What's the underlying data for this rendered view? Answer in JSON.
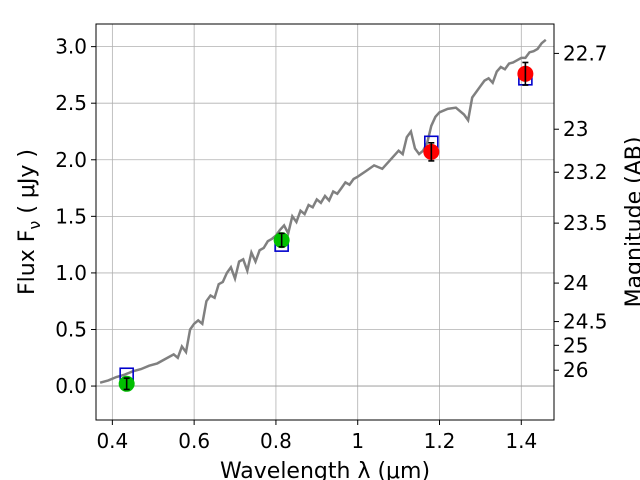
{
  "chart_data": {
    "type": "scatter",
    "xlabel": "Wavelength  λ (μm)",
    "ylabel_left": "Flux  F",
    "ylabel_left_sub": "ν",
    "ylabel_left_units": " ( μJy )",
    "ylabel_right": "Magnitude (AB)",
    "xlim": [
      0.36,
      1.48
    ],
    "ylim": [
      -0.3,
      3.2
    ],
    "x_ticks": [
      {
        "value": 0.4,
        "label": "0.4"
      },
      {
        "value": 0.6,
        "label": "0.6"
      },
      {
        "value": 0.8,
        "label": "0.8"
      },
      {
        "value": 1.0,
        "label": "1"
      },
      {
        "value": 1.2,
        "label": "1.2"
      },
      {
        "value": 1.4,
        "label": "1.4"
      }
    ],
    "y_ticks": [
      {
        "value": 0.0,
        "label": "0.0"
      },
      {
        "value": 0.5,
        "label": "0.5"
      },
      {
        "value": 1.0,
        "label": "1.0"
      },
      {
        "value": 1.5,
        "label": "1.5"
      },
      {
        "value": 2.0,
        "label": "2.0"
      },
      {
        "value": 2.5,
        "label": "2.5"
      },
      {
        "value": 3.0,
        "label": "3.0"
      }
    ],
    "right_ticks": [
      {
        "flux": 2.94,
        "label": "22.7"
      },
      {
        "flux": 2.27,
        "label": "23"
      },
      {
        "flux": 1.89,
        "label": "23.2"
      },
      {
        "flux": 1.44,
        "label": "23.5"
      },
      {
        "flux": 0.91,
        "label": "24"
      },
      {
        "flux": 0.57,
        "label": "24.5"
      },
      {
        "flux": 0.36,
        "label": "25"
      },
      {
        "flux": 0.14,
        "label": "26"
      }
    ],
    "grid": true,
    "model_spectrum": {
      "color": "#808080",
      "x": [
        0.37,
        0.39,
        0.41,
        0.43,
        0.45,
        0.47,
        0.49,
        0.51,
        0.53,
        0.55,
        0.56,
        0.57,
        0.58,
        0.59,
        0.6,
        0.61,
        0.62,
        0.63,
        0.64,
        0.65,
        0.66,
        0.67,
        0.68,
        0.69,
        0.7,
        0.71,
        0.72,
        0.73,
        0.74,
        0.75,
        0.76,
        0.77,
        0.78,
        0.79,
        0.8,
        0.81,
        0.82,
        0.83,
        0.84,
        0.85,
        0.86,
        0.87,
        0.88,
        0.89,
        0.9,
        0.91,
        0.92,
        0.93,
        0.94,
        0.95,
        0.96,
        0.97,
        0.98,
        0.99,
        1.0,
        1.02,
        1.04,
        1.06,
        1.08,
        1.1,
        1.11,
        1.12,
        1.13,
        1.14,
        1.15,
        1.16,
        1.17,
        1.18,
        1.19,
        1.2,
        1.22,
        1.24,
        1.26,
        1.27,
        1.28,
        1.29,
        1.3,
        1.31,
        1.32,
        1.33,
        1.34,
        1.35,
        1.36,
        1.37,
        1.38,
        1.39,
        1.4,
        1.41,
        1.42,
        1.43,
        1.44,
        1.45,
        1.46
      ],
      "y": [
        0.03,
        0.05,
        0.08,
        0.1,
        0.13,
        0.15,
        0.18,
        0.2,
        0.24,
        0.28,
        0.25,
        0.35,
        0.3,
        0.5,
        0.55,
        0.58,
        0.55,
        0.75,
        0.8,
        0.78,
        0.9,
        0.92,
        1.0,
        1.05,
        0.95,
        1.1,
        1.12,
        1.02,
        1.18,
        1.1,
        1.2,
        1.22,
        1.28,
        1.3,
        1.33,
        1.38,
        1.42,
        1.35,
        1.5,
        1.45,
        1.55,
        1.52,
        1.6,
        1.58,
        1.65,
        1.62,
        1.68,
        1.64,
        1.72,
        1.7,
        1.75,
        1.8,
        1.78,
        1.83,
        1.85,
        1.9,
        1.95,
        1.92,
        2.0,
        2.08,
        2.05,
        2.2,
        2.25,
        2.1,
        2.05,
        2.08,
        2.15,
        2.3,
        2.38,
        2.42,
        2.45,
        2.46,
        2.4,
        2.35,
        2.55,
        2.6,
        2.65,
        2.7,
        2.72,
        2.68,
        2.78,
        2.82,
        2.8,
        2.85,
        2.86,
        2.88,
        2.9,
        2.9,
        2.95,
        2.96,
        2.98,
        3.03,
        3.06
      ]
    },
    "observed": [
      {
        "x": 0.435,
        "y": 0.02,
        "err": 0.05,
        "color": "#00bf00"
      },
      {
        "x": 0.814,
        "y": 1.29,
        "err": 0.06,
        "color": "#00bf00"
      },
      {
        "x": 1.18,
        "y": 2.07,
        "err": 0.08,
        "color": "#ff0000"
      },
      {
        "x": 1.41,
        "y": 2.76,
        "err": 0.1,
        "color": "#ff0000"
      }
    ],
    "model_photometry": {
      "color": "#0000cc",
      "points": [
        {
          "x": 0.435,
          "y": 0.1
        },
        {
          "x": 0.814,
          "y": 1.25
        },
        {
          "x": 1.18,
          "y": 2.15
        },
        {
          "x": 1.41,
          "y": 2.72
        }
      ]
    }
  }
}
